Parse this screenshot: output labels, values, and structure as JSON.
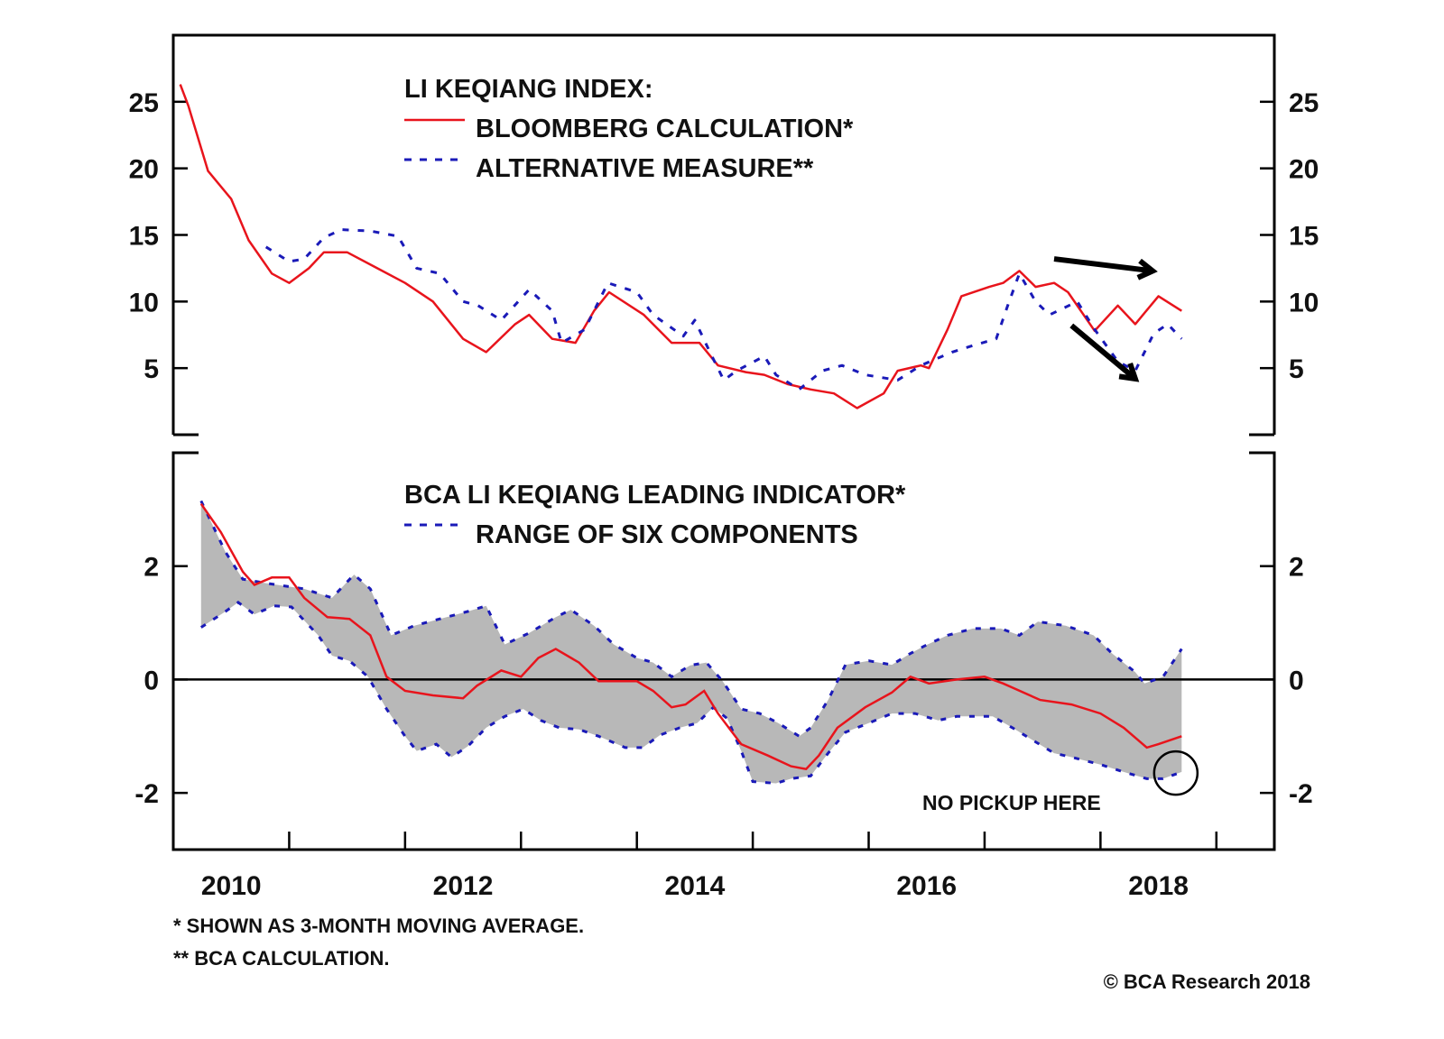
{
  "chart_data": [
    {
      "type": "line",
      "panel": "top",
      "title": "LI KEQIANG INDEX:",
      "xlabel": "",
      "ylabel": "",
      "xlim": [
        2010.0,
        2019.5
      ],
      "ylim": [
        0,
        30
      ],
      "yticks": [
        5,
        10,
        15,
        20,
        25
      ],
      "ytick_labels": [
        "5",
        "10",
        "15",
        "20",
        "25"
      ],
      "ytick_sides": [
        "left",
        "right"
      ],
      "grid": false,
      "legend_position": "top-center",
      "series": [
        {
          "name": "BLOOMBERG CALCULATION*",
          "style": "solid",
          "color": "#e8141c",
          "x": [
            2010.06,
            2010.13,
            2010.3,
            2010.5,
            2010.65,
            2010.85,
            2011.0,
            2011.17,
            2011.3,
            2011.5,
            2011.76,
            2012.0,
            2012.24,
            2012.5,
            2012.7,
            2012.95,
            2013.07,
            2013.27,
            2013.47,
            2013.63,
            2013.76,
            2014.06,
            2014.3,
            2014.54,
            2014.7,
            2014.94,
            2015.1,
            2015.3,
            2015.5,
            2015.7,
            2015.9,
            2016.13,
            2016.25,
            2016.45,
            2016.52,
            2016.68,
            2016.8,
            2017.04,
            2017.16,
            2017.3,
            2017.44,
            2017.6,
            2017.72,
            2017.95,
            2018.15,
            2018.3,
            2018.5,
            2018.7
          ],
          "values": [
            26.3,
            24.7,
            19.8,
            17.7,
            14.6,
            12.1,
            11.4,
            12.5,
            13.7,
            13.7,
            12.5,
            11.4,
            10.0,
            7.2,
            6.2,
            8.3,
            9.0,
            7.2,
            6.9,
            9.3,
            10.7,
            9.0,
            6.9,
            6.9,
            5.2,
            4.7,
            4.5,
            3.8,
            3.4,
            3.1,
            2.0,
            3.1,
            4.8,
            5.2,
            5.0,
            7.9,
            10.4,
            11.1,
            11.4,
            12.3,
            11.1,
            11.4,
            10.7,
            7.8,
            9.7,
            8.3,
            10.4,
            9.3
          ]
        },
        {
          "name": "ALTERNATIVE MEASURE**",
          "style": "dashed",
          "color": "#1a1ab8",
          "x": [
            2010.8,
            2011.0,
            2011.13,
            2011.3,
            2011.45,
            2011.7,
            2011.94,
            2012.1,
            2012.3,
            2012.5,
            2012.63,
            2012.83,
            2013.07,
            2013.27,
            2013.35,
            2013.55,
            2013.75,
            2014.0,
            2014.14,
            2014.4,
            2014.5,
            2014.63,
            2014.75,
            2014.86,
            2015.1,
            2015.2,
            2015.4,
            2015.6,
            2015.77,
            2015.97,
            2016.25,
            2016.45,
            2016.72,
            2016.9,
            2017.1,
            2017.2,
            2017.3,
            2017.44,
            2017.56,
            2017.8,
            2017.95,
            2018.15,
            2018.3,
            2018.46,
            2018.58,
            2018.7
          ],
          "values": [
            14.1,
            13.0,
            13.2,
            14.8,
            15.4,
            15.3,
            14.9,
            12.5,
            12.1,
            10.0,
            9.7,
            8.6,
            10.9,
            9.3,
            6.9,
            7.9,
            11.4,
            10.7,
            9.0,
            7.4,
            8.6,
            6.2,
            4.1,
            4.8,
            5.9,
            4.5,
            3.4,
            4.8,
            5.2,
            4.5,
            4.1,
            5.2,
            6.2,
            6.7,
            7.2,
            9.7,
            12.1,
            10.0,
            9.0,
            10.0,
            7.9,
            5.5,
            4.8,
            7.6,
            8.3,
            7.2
          ]
        }
      ],
      "annotations": [
        {
          "type": "arrow",
          "direction": "flat-right",
          "from": [
            2017.6,
            13.2
          ],
          "to": [
            2018.45,
            12.3
          ],
          "meaning": "Bloomberg measure flat"
        },
        {
          "type": "arrow",
          "direction": "down-right",
          "from": [
            2017.75,
            8.2
          ],
          "to": [
            2018.3,
            4.2
          ],
          "meaning": "Alternative measure falling"
        }
      ]
    },
    {
      "type": "area",
      "panel": "bottom",
      "title": "BCA LI KEQIANG LEADING INDICATOR*",
      "xlabel": "",
      "ylabel": "",
      "xlim": [
        2010.0,
        2019.5
      ],
      "ylim": [
        -3,
        4
      ],
      "yticks": [
        -2,
        0,
        2
      ],
      "ytick_labels": [
        "-2",
        "0",
        "2"
      ],
      "ytick_sides": [
        "left",
        "right"
      ],
      "zero_line": true,
      "grid": false,
      "legend_position": "top-center",
      "series": [
        {
          "name": "BCA LI KEQIANG LEADING INDICATOR*",
          "style": "solid",
          "color": "#e8141c",
          "x": [
            2010.24,
            2010.41,
            2010.6,
            2010.7,
            2010.85,
            2011.0,
            2011.13,
            2011.33,
            2011.52,
            2011.7,
            2011.84,
            2012.0,
            2012.24,
            2012.5,
            2012.62,
            2012.83,
            2013.0,
            2013.15,
            2013.3,
            2013.5,
            2013.67,
            2014.0,
            2014.14,
            2014.3,
            2014.42,
            2014.58,
            2014.7,
            2014.9,
            2015.13,
            2015.33,
            2015.46,
            2015.57,
            2015.73,
            2015.97,
            2016.2,
            2016.36,
            2016.52,
            2016.76,
            2017.0,
            2017.16,
            2017.48,
            2017.75,
            2018.0,
            2018.2,
            2018.4,
            2018.5,
            2018.7
          ],
          "values": [
            3.1,
            2.6,
            1.9,
            1.67,
            1.8,
            1.8,
            1.44,
            1.1,
            1.07,
            0.78,
            0.05,
            -0.2,
            -0.28,
            -0.33,
            -0.11,
            0.16,
            0.05,
            0.38,
            0.54,
            0.3,
            -0.03,
            -0.03,
            -0.2,
            -0.49,
            -0.44,
            -0.2,
            -0.6,
            -1.14,
            -1.34,
            -1.53,
            -1.58,
            -1.34,
            -0.85,
            -0.49,
            -0.23,
            0.05,
            -0.07,
            0.0,
            0.05,
            -0.07,
            -0.36,
            -0.44,
            -0.6,
            -0.85,
            -1.2,
            -1.14,
            -1.0
          ]
        },
        {
          "name": "RANGE OF SIX COMPONENTS (upper)",
          "style": "dashed",
          "color": "#1a1ab8",
          "x": [
            2010.24,
            2010.45,
            2010.6,
            2010.8,
            2011.13,
            2011.37,
            2011.56,
            2011.7,
            2011.88,
            2012.08,
            2012.3,
            2012.54,
            2012.7,
            2012.86,
            2013.07,
            2013.3,
            2013.43,
            2013.63,
            2013.8,
            2014.0,
            2014.14,
            2014.3,
            2014.46,
            2014.6,
            2014.74,
            2014.9,
            2015.06,
            2015.22,
            2015.4,
            2015.5,
            2015.65,
            2015.8,
            2016.0,
            2016.2,
            2016.36,
            2016.48,
            2016.68,
            2016.9,
            2017.14,
            2017.3,
            2017.46,
            2017.7,
            2017.94,
            2018.1,
            2018.3,
            2018.38,
            2018.54,
            2018.7
          ],
          "values": [
            3.15,
            2.25,
            1.77,
            1.7,
            1.6,
            1.44,
            1.85,
            1.6,
            0.78,
            0.95,
            1.07,
            1.2,
            1.3,
            0.62,
            0.82,
            1.1,
            1.23,
            0.95,
            0.62,
            0.38,
            0.3,
            0.05,
            0.25,
            0.3,
            -0.03,
            -0.52,
            -0.6,
            -0.77,
            -1.0,
            -0.85,
            -0.36,
            0.26,
            0.33,
            0.26,
            0.46,
            0.59,
            0.78,
            0.9,
            0.9,
            0.78,
            1.02,
            0.95,
            0.78,
            0.46,
            0.13,
            -0.07,
            0.05,
            0.54
          ]
        },
        {
          "name": "RANGE OF SIX COMPONENTS (lower)",
          "style": "dashed",
          "color": "#1a1ab8",
          "x": [
            2010.24,
            2010.45,
            2010.56,
            2010.7,
            2010.87,
            2011.02,
            2011.25,
            2011.37,
            2011.52,
            2011.68,
            2011.84,
            2012.0,
            2012.1,
            2012.27,
            2012.4,
            2012.54,
            2012.7,
            2012.86,
            2013.02,
            2013.17,
            2013.33,
            2013.5,
            2013.67,
            2013.9,
            2014.05,
            2014.2,
            2014.37,
            2014.52,
            2014.66,
            2014.78,
            2014.9,
            2015.0,
            2015.2,
            2015.33,
            2015.5,
            2015.65,
            2015.8,
            2016.0,
            2016.2,
            2016.4,
            2016.6,
            2016.76,
            2016.9,
            2017.07,
            2017.24,
            2017.44,
            2017.6,
            2017.75,
            2018.0,
            2018.2,
            2018.4,
            2018.54,
            2018.7
          ],
          "values": [
            0.92,
            1.2,
            1.36,
            1.15,
            1.3,
            1.28,
            0.78,
            0.42,
            0.33,
            0.05,
            -0.52,
            -1.0,
            -1.26,
            -1.14,
            -1.37,
            -1.18,
            -0.85,
            -0.65,
            -0.52,
            -0.72,
            -0.85,
            -0.88,
            -1.0,
            -1.2,
            -1.2,
            -0.98,
            -0.85,
            -0.77,
            -0.49,
            -0.69,
            -1.26,
            -1.8,
            -1.83,
            -1.75,
            -1.7,
            -1.3,
            -0.93,
            -0.77,
            -0.6,
            -0.6,
            -0.72,
            -0.65,
            -0.65,
            -0.65,
            -0.85,
            -1.1,
            -1.3,
            -1.37,
            -1.5,
            -1.63,
            -1.75,
            -1.75,
            -1.63
          ]
        }
      ],
      "fill_color": "#b8b8b8",
      "annotations": [
        {
          "type": "circle",
          "at": [
            2018.65,
            -1.65
          ],
          "text": "NO PICKUP HERE"
        }
      ]
    }
  ],
  "x_axis": {
    "tick_years": [
      2011,
      2012,
      2013,
      2014,
      2015,
      2016,
      2017,
      2018,
      2019
    ],
    "labels": [
      {
        "text": "2010",
        "at": 2010.5
      },
      {
        "text": "2012",
        "at": 2012.5
      },
      {
        "text": "2014",
        "at": 2014.5
      },
      {
        "text": "2016",
        "at": 2016.5
      },
      {
        "text": "2018",
        "at": 2018.5
      }
    ]
  },
  "legend_top": {
    "title": "LI KEQIANG INDEX:",
    "items": [
      "BLOOMBERG CALCULATION*",
      "ALTERNATIVE MEASURE**"
    ]
  },
  "legend_bottom": {
    "title": "BCA LI KEQIANG LEADING INDICATOR*",
    "items": [
      "RANGE OF SIX COMPONENTS"
    ]
  },
  "annotation_text": "NO PICKUP HERE",
  "footnotes": [
    "*  SHOWN AS 3-MONTH MOVING AVERAGE.",
    "** BCA CALCULATION."
  ],
  "copyright": "© BCA Research 2018",
  "colors": {
    "red": "#e8141c",
    "blue": "#1a1ab8",
    "fill": "#b8b8b8",
    "axis": "#000000"
  }
}
